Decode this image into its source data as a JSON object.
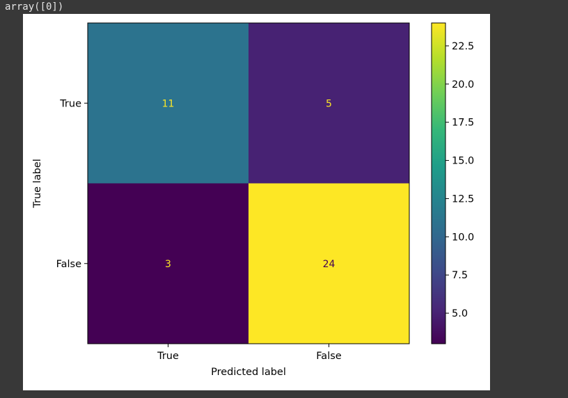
{
  "output": {
    "text": "array([0])"
  },
  "colors": {
    "page_background": "#383838",
    "figure_background": "#ffffff",
    "viridis": [
      "#440154",
      "#482878",
      "#3e4989",
      "#31688e",
      "#26828e",
      "#1f9e89",
      "#35b779",
      "#6ece58",
      "#b5de2b",
      "#fde725"
    ]
  },
  "chart_data": {
    "type": "heatmap",
    "title": "",
    "xlabel": "Predicted label",
    "ylabel": "True label",
    "x_categories": [
      "True",
      "False"
    ],
    "y_categories": [
      "True",
      "False"
    ],
    "values": [
      [
        11,
        5
      ],
      [
        3,
        24
      ]
    ],
    "colormap": "viridis",
    "colorbar": {
      "min": 3,
      "max": 24,
      "ticks": [
        "5.0",
        "7.5",
        "10.0",
        "12.5",
        "15.0",
        "17.5",
        "20.0",
        "22.5"
      ]
    }
  }
}
